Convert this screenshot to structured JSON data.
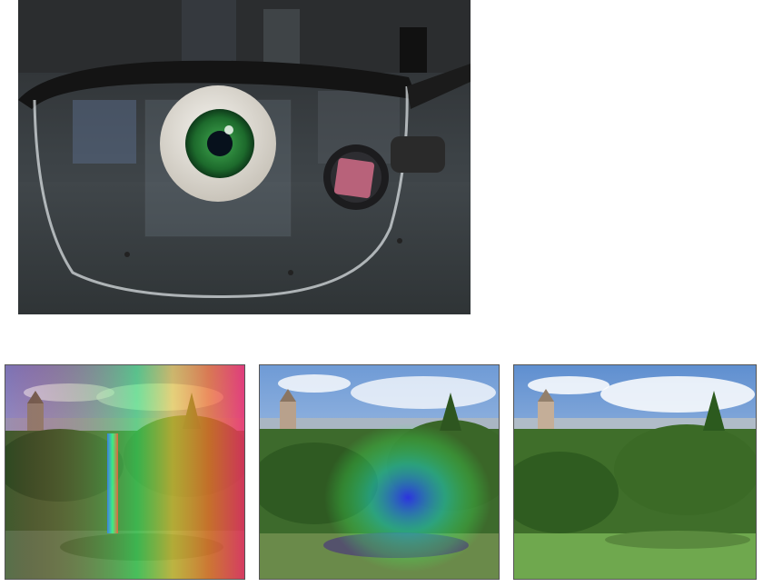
{
  "figure": {
    "top_photo": {
      "subject": "eye-model-behind-eyeglass-lens-with-camera"
    },
    "bottom_photos": [
      {
        "subject": "campus-view-strong-rainbow-glare"
      },
      {
        "subject": "campus-view-moderate-glare"
      },
      {
        "subject": "campus-view-clear"
      }
    ]
  }
}
